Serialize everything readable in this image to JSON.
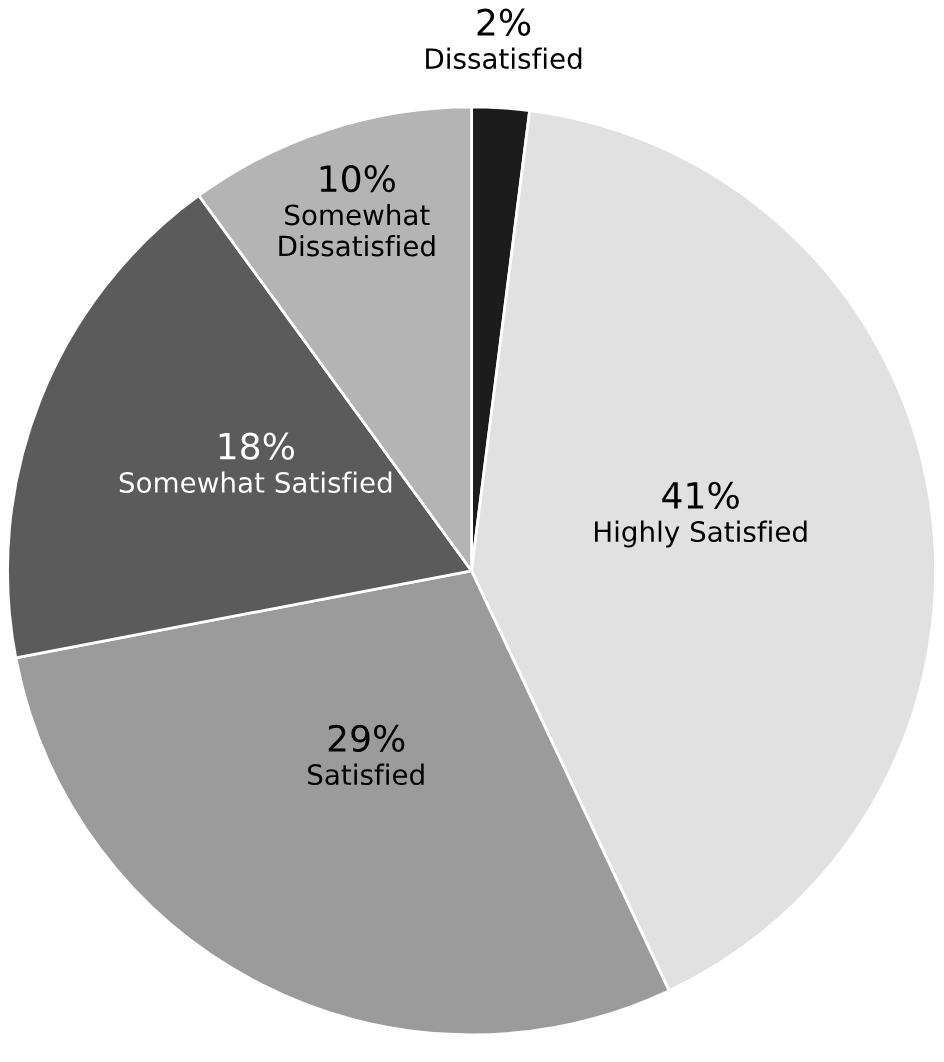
{
  "chart_data": {
    "type": "pie",
    "categories": [
      "Dissatisfied",
      "Highly Satisfied",
      "Satisfied",
      "Somewhat Satisfied",
      "Somewhat Dissatisfied"
    ],
    "values": [
      2,
      41,
      29,
      18,
      10
    ],
    "value_labels": [
      "2%",
      "41%",
      "29%",
      "18%",
      "10%"
    ],
    "colors": [
      "#1c1c1c",
      "#e1e1e1",
      "#9b9b9b",
      "#5b5b5b",
      "#b4b4b4"
    ]
  }
}
